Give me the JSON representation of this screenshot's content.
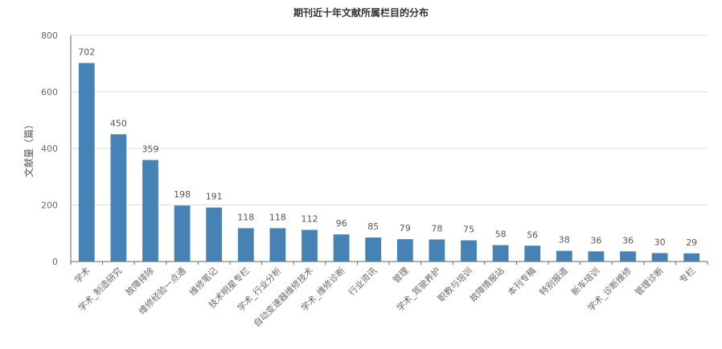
{
  "chart_data": {
    "type": "bar",
    "title": "期刊近十年文献所属栏目的分布",
    "xlabel": "",
    "ylabel": "文献量（篇）",
    "ylim": [
      0,
      800
    ],
    "yticks": [
      0,
      200,
      400,
      600,
      800
    ],
    "grid": true,
    "categories": [
      "学术",
      "学术_制造研究",
      "故障排除",
      "维修经验一点通",
      "维修笔记",
      "技术明星专栏",
      "学术_行业分析",
      "自动变速器维修技术",
      "学术_维修诊断",
      "行业资讯",
      "管理",
      "学术_驾驶养护",
      "职教与培训",
      "故障情报站",
      "本刊专稿",
      "特别报道",
      "新车培训",
      "学术_诊断维修",
      "管理诊断",
      "专栏"
    ],
    "values": [
      702,
      450,
      359,
      198,
      191,
      118,
      118,
      112,
      96,
      85,
      79,
      78,
      75,
      58,
      56,
      38,
      36,
      36,
      30,
      29
    ],
    "bar_color": "#4682B4"
  }
}
